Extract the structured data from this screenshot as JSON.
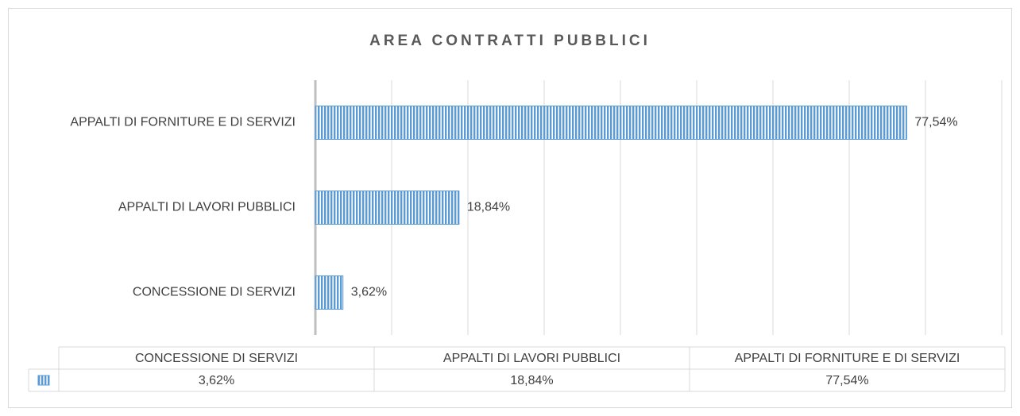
{
  "chart_data": {
    "type": "bar",
    "orientation": "horizontal",
    "title": "AREA CONTRATTI PUBBLICI",
    "categories": [
      "CONCESSIONE DI SERVIZI",
      "APPALTI DI LAVORI PUBBLICI",
      "APPALTI DI FORNITURE E DI SERVIZI"
    ],
    "values": [
      3.62,
      18.84,
      77.54
    ],
    "value_labels": [
      "3,62%",
      "18,84%",
      "77,54%"
    ],
    "color": "#5b9bd5",
    "xlim": [
      0,
      90
    ],
    "xticks": [
      0,
      10,
      20,
      30,
      40,
      50,
      60,
      70,
      80,
      90
    ],
    "grid": true,
    "data_table": true
  }
}
